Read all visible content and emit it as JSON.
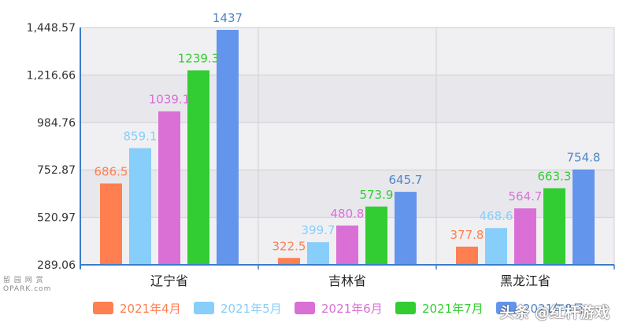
{
  "chart_data": {
    "type": "bar",
    "categories": [
      "辽宁省",
      "吉林省",
      "黑龙江省"
    ],
    "series": [
      {
        "name": "2021年4月",
        "color": "#ff7f50",
        "values": [
          686.5,
          322.5,
          377.8
        ]
      },
      {
        "name": "2021年5月",
        "color": "#87cefa",
        "values": [
          859.1,
          399.7,
          468.6
        ]
      },
      {
        "name": "2021年6月",
        "color": "#da70d6",
        "values": [
          1039.1,
          480.8,
          564.7
        ]
      },
      {
        "name": "2021年7月",
        "color": "#32cd32",
        "values": [
          1239.3,
          573.9,
          663.3
        ]
      },
      {
        "name": "2021年8月",
        "color": "#6495ed",
        "values": [
          1437,
          645.7,
          754.8
        ]
      }
    ],
    "yticks": [
      "289.06",
      "520.97",
      "752.87",
      "984.76",
      "1,216.66",
      "1,448.57"
    ],
    "ylim": [
      289.06,
      1448.57
    ],
    "data_label_colors": [
      "#ff7f50",
      "#87cefa",
      "#da70d6",
      "#32cd32",
      "#4f86c6"
    ],
    "grid": true,
    "legend_position": "bottom"
  },
  "watermarks": {
    "top_left": "留 园 网 赏\nOPARK.com",
    "bottom_right": "头条 @红杆游戏"
  }
}
